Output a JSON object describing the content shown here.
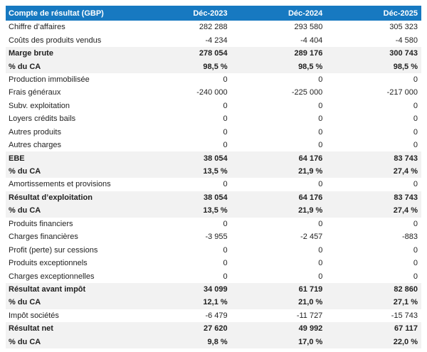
{
  "chart_data": {
    "type": "table",
    "title": "Compte de résultat (GBP)",
    "columns": [
      "Déc-2023",
      "Déc-2024",
      "Déc-2025"
    ],
    "rows": [
      {
        "label": "Chiffre d’affaires",
        "values": [
          "282 288",
          "293 580",
          "305 323"
        ],
        "emphasis": false
      },
      {
        "label": "Coûts des produits vendus",
        "values": [
          "-4 234",
          "-4 404",
          "-4 580"
        ],
        "emphasis": false
      },
      {
        "label": "Marge brute",
        "values": [
          "278 054",
          "289 176",
          "300 743"
        ],
        "emphasis": true
      },
      {
        "label": "% du CA",
        "values": [
          "98,5 %",
          "98,5 %",
          "98,5 %"
        ],
        "emphasis": true
      },
      {
        "label": "Production immobilisée",
        "values": [
          "0",
          "0",
          "0"
        ],
        "emphasis": false
      },
      {
        "label": "Frais généraux",
        "values": [
          "-240 000",
          "-225 000",
          "-217 000"
        ],
        "emphasis": false
      },
      {
        "label": "Subv. exploitation",
        "values": [
          "0",
          "0",
          "0"
        ],
        "emphasis": false
      },
      {
        "label": "Loyers crédits bails",
        "values": [
          "0",
          "0",
          "0"
        ],
        "emphasis": false
      },
      {
        "label": "Autres produits",
        "values": [
          "0",
          "0",
          "0"
        ],
        "emphasis": false
      },
      {
        "label": "Autres charges",
        "values": [
          "0",
          "0",
          "0"
        ],
        "emphasis": false
      },
      {
        "label": "EBE",
        "values": [
          "38 054",
          "64 176",
          "83 743"
        ],
        "emphasis": true
      },
      {
        "label": "% du CA",
        "values": [
          "13,5 %",
          "21,9 %",
          "27,4 %"
        ],
        "emphasis": true
      },
      {
        "label": "Amortissements et provisions",
        "values": [
          "0",
          "0",
          "0"
        ],
        "emphasis": false
      },
      {
        "label": "Résultat d’exploitation",
        "values": [
          "38 054",
          "64 176",
          "83 743"
        ],
        "emphasis": true
      },
      {
        "label": "% du CA",
        "values": [
          "13,5 %",
          "21,9 %",
          "27,4 %"
        ],
        "emphasis": true
      },
      {
        "label": "Produits financiers",
        "values": [
          "0",
          "0",
          "0"
        ],
        "emphasis": false
      },
      {
        "label": "Charges financières",
        "values": [
          "-3 955",
          "-2 457",
          "-883"
        ],
        "emphasis": false
      },
      {
        "label": "Profit (perte) sur cessions",
        "values": [
          "0",
          "0",
          "0"
        ],
        "emphasis": false
      },
      {
        "label": "Produits exceptionnels",
        "values": [
          "0",
          "0",
          "0"
        ],
        "emphasis": false
      },
      {
        "label": "Charges exceptionnelles",
        "values": [
          "0",
          "0",
          "0"
        ],
        "emphasis": false
      },
      {
        "label": "Résultat avant impôt",
        "values": [
          "34 099",
          "61 719",
          "82 860"
        ],
        "emphasis": true
      },
      {
        "label": "% du CA",
        "values": [
          "12,1 %",
          "21,0 %",
          "27,1 %"
        ],
        "emphasis": true
      },
      {
        "label": "Impôt sociétés",
        "values": [
          "-6 479",
          "-11 727",
          "-15 743"
        ],
        "emphasis": false
      },
      {
        "label": "Résultat net",
        "values": [
          "27 620",
          "49 992",
          "67 117"
        ],
        "emphasis": true
      },
      {
        "label": "% du CA",
        "values": [
          "9,8 %",
          "17,0 %",
          "22,0 %"
        ],
        "emphasis": true
      }
    ],
    "layout": {
      "value_alignment": "right",
      "emphasis_rows_are_bold_with_gray_background": true
    }
  },
  "colors": {
    "header_bg": "#1779C1",
    "header_text": "#FFFFFF",
    "emphasis_row_bg": "#F2F2F2",
    "body_text": "#1F1F1F",
    "page_bg": "#FFFFFF"
  }
}
